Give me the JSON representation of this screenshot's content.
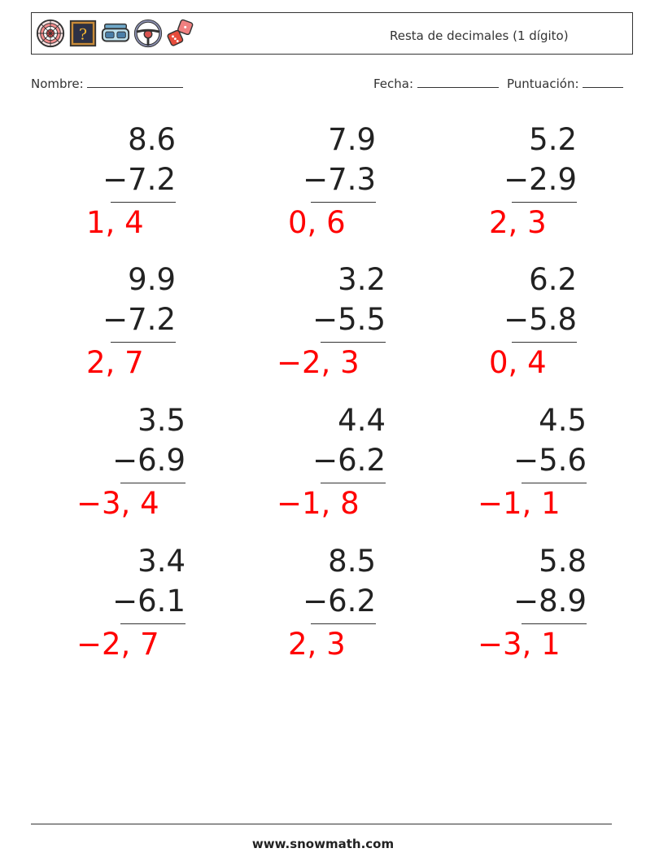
{
  "header": {
    "title": "Resta de decimales (1 dígito)",
    "icons": [
      "dartboard-icon",
      "mystery-box-icon",
      "vr-headset-icon",
      "steering-wheel-icon",
      "dice-icon"
    ]
  },
  "meta": {
    "name_label": "Nombre:",
    "date_label": "Fecha:",
    "score_label": "Puntuación:"
  },
  "problems": [
    {
      "top": "8.6",
      "bottom": "−7.2",
      "answer": "1, 4"
    },
    {
      "top": "7.9",
      "bottom": "−7.3",
      "answer": "0, 6"
    },
    {
      "top": "5.2",
      "bottom": "−2.9",
      "answer": "2, 3"
    },
    {
      "top": "9.9",
      "bottom": "−7.2",
      "answer": "2, 7"
    },
    {
      "top": "3.2",
      "bottom": "−5.5",
      "answer": "−2, 3"
    },
    {
      "top": "6.2",
      "bottom": "−5.8",
      "answer": "0, 4"
    },
    {
      "top": "3.5",
      "bottom": "−6.9",
      "answer": "−3, 4"
    },
    {
      "top": "4.4",
      "bottom": "−6.2",
      "answer": "−1, 8"
    },
    {
      "top": "4.5",
      "bottom": "−5.6",
      "answer": "−1, 1"
    },
    {
      "top": "3.4",
      "bottom": "−6.1",
      "answer": "−2, 7"
    },
    {
      "top": "8.5",
      "bottom": "−6.2",
      "answer": "2, 3"
    },
    {
      "top": "5.8",
      "bottom": "−8.9",
      "answer": "−3, 1"
    }
  ],
  "footer": {
    "site": "www.snowmath.com"
  },
  "colors": {
    "answer": "#ff0000",
    "text": "#222222"
  }
}
